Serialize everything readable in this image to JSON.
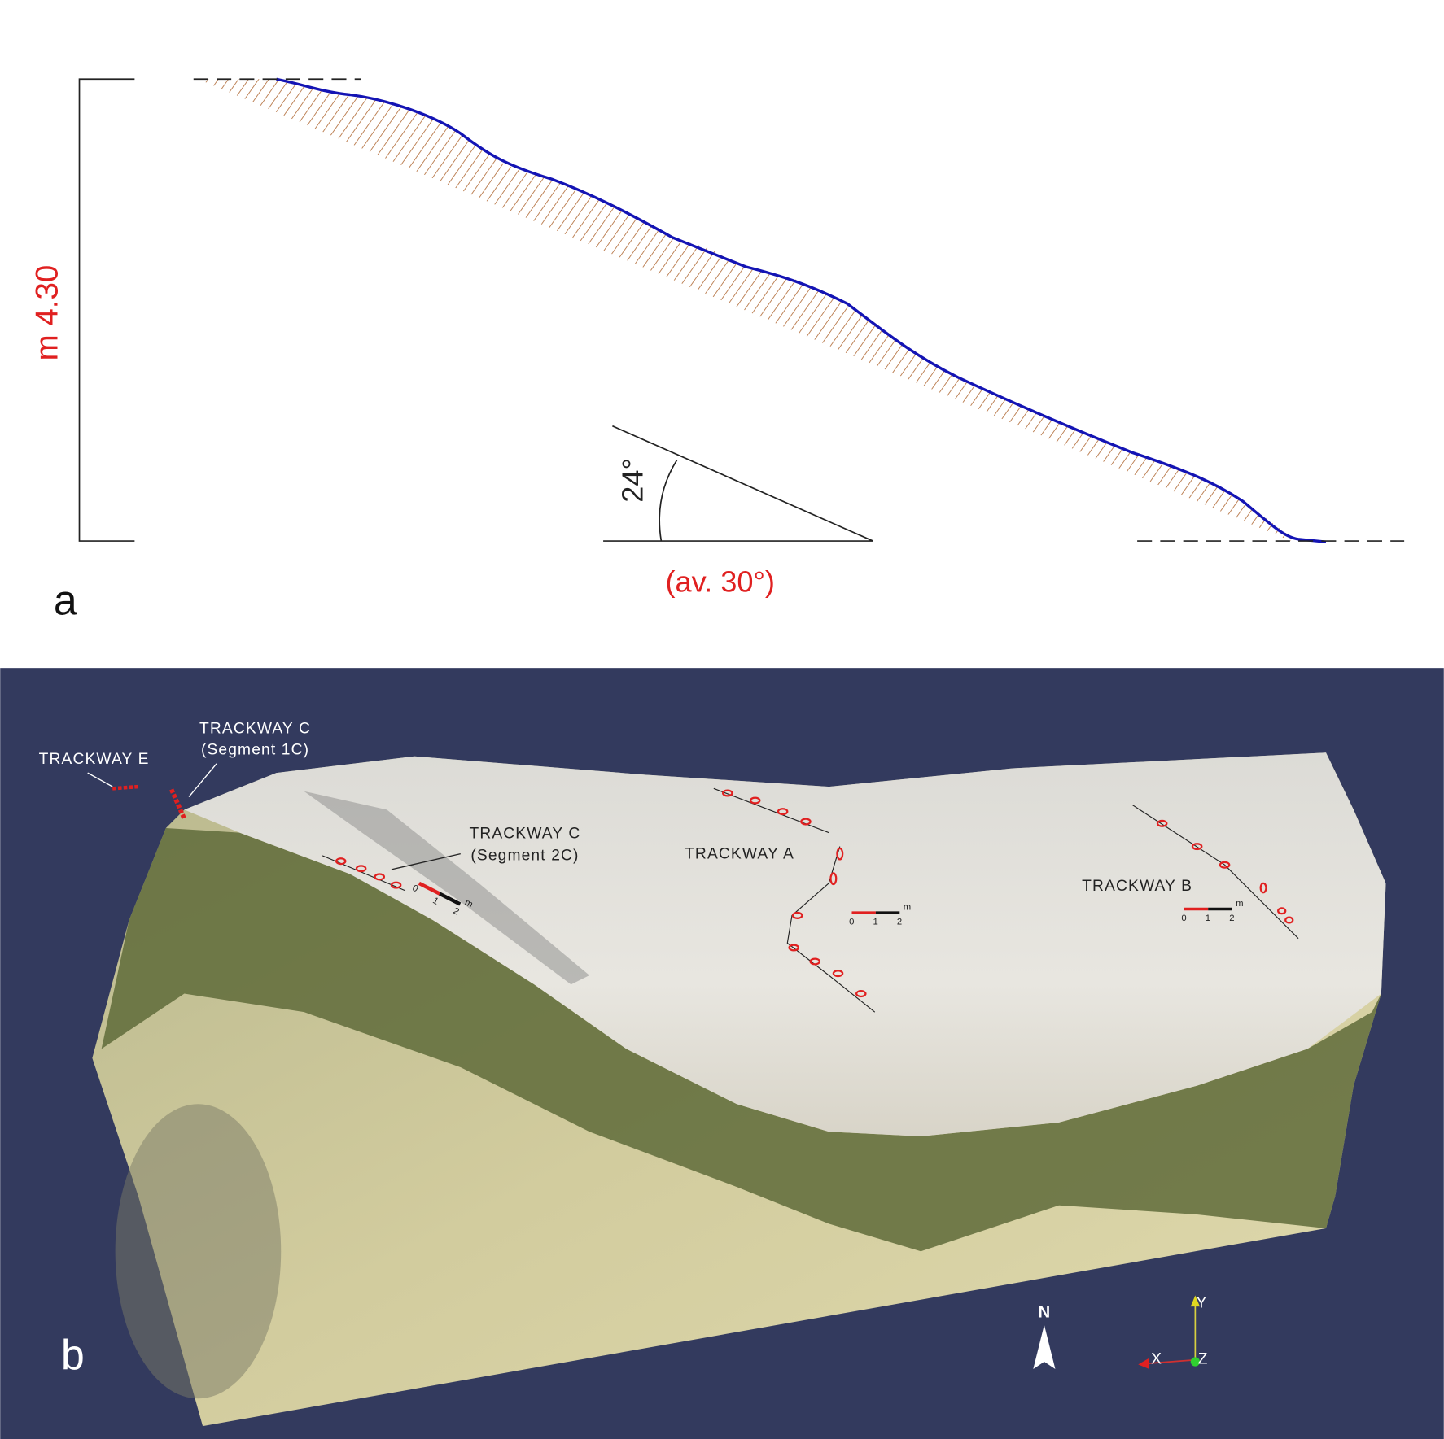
{
  "panel_a": {
    "label": "a",
    "height_label": "m 4.30",
    "angle_label": "24°",
    "average_label": "(av. 30°)"
  },
  "panel_b": {
    "label": "b",
    "trackways": [
      {
        "name": "TRACKWAY E"
      },
      {
        "name": "TRACKWAY C",
        "segment": "(Segment 1C)"
      },
      {
        "name": "TRACKWAY C",
        "segment": "(Segment 2C)"
      },
      {
        "name": "TRACKWAY A"
      },
      {
        "name": "TRACKWAY B"
      }
    ],
    "scale_bar": {
      "ticks": [
        "0",
        "1",
        "2"
      ],
      "unit": "m"
    },
    "north": "N",
    "axes": [
      "X",
      "Y",
      "Z"
    ]
  }
}
